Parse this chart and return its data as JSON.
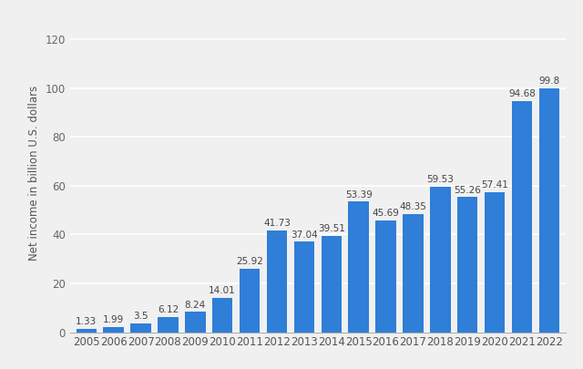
{
  "years": [
    "2005",
    "2006",
    "2007",
    "2008",
    "2009",
    "2010",
    "2011",
    "2012",
    "2013",
    "2014",
    "2015",
    "2016",
    "2017",
    "2018",
    "2019",
    "2020",
    "2021",
    "2022"
  ],
  "values": [
    1.33,
    1.99,
    3.5,
    6.12,
    8.24,
    14.01,
    25.92,
    41.73,
    37.04,
    39.51,
    53.39,
    45.69,
    48.35,
    59.53,
    55.26,
    57.41,
    94.68,
    99.8
  ],
  "bar_color": "#2f7ed8",
  "ylabel": "Net income in billion U.S. dollars",
  "ylim": [
    0,
    130
  ],
  "yticks": [
    0,
    20,
    40,
    60,
    80,
    100,
    120
  ],
  "background_color": "#f0f0f0",
  "plot_bg_color": "#f0f0f0",
  "grid_color": "#ffffff",
  "label_fontsize": 7.5,
  "tick_fontsize": 8.5,
  "ylabel_fontsize": 8.5,
  "bar_width": 0.75
}
